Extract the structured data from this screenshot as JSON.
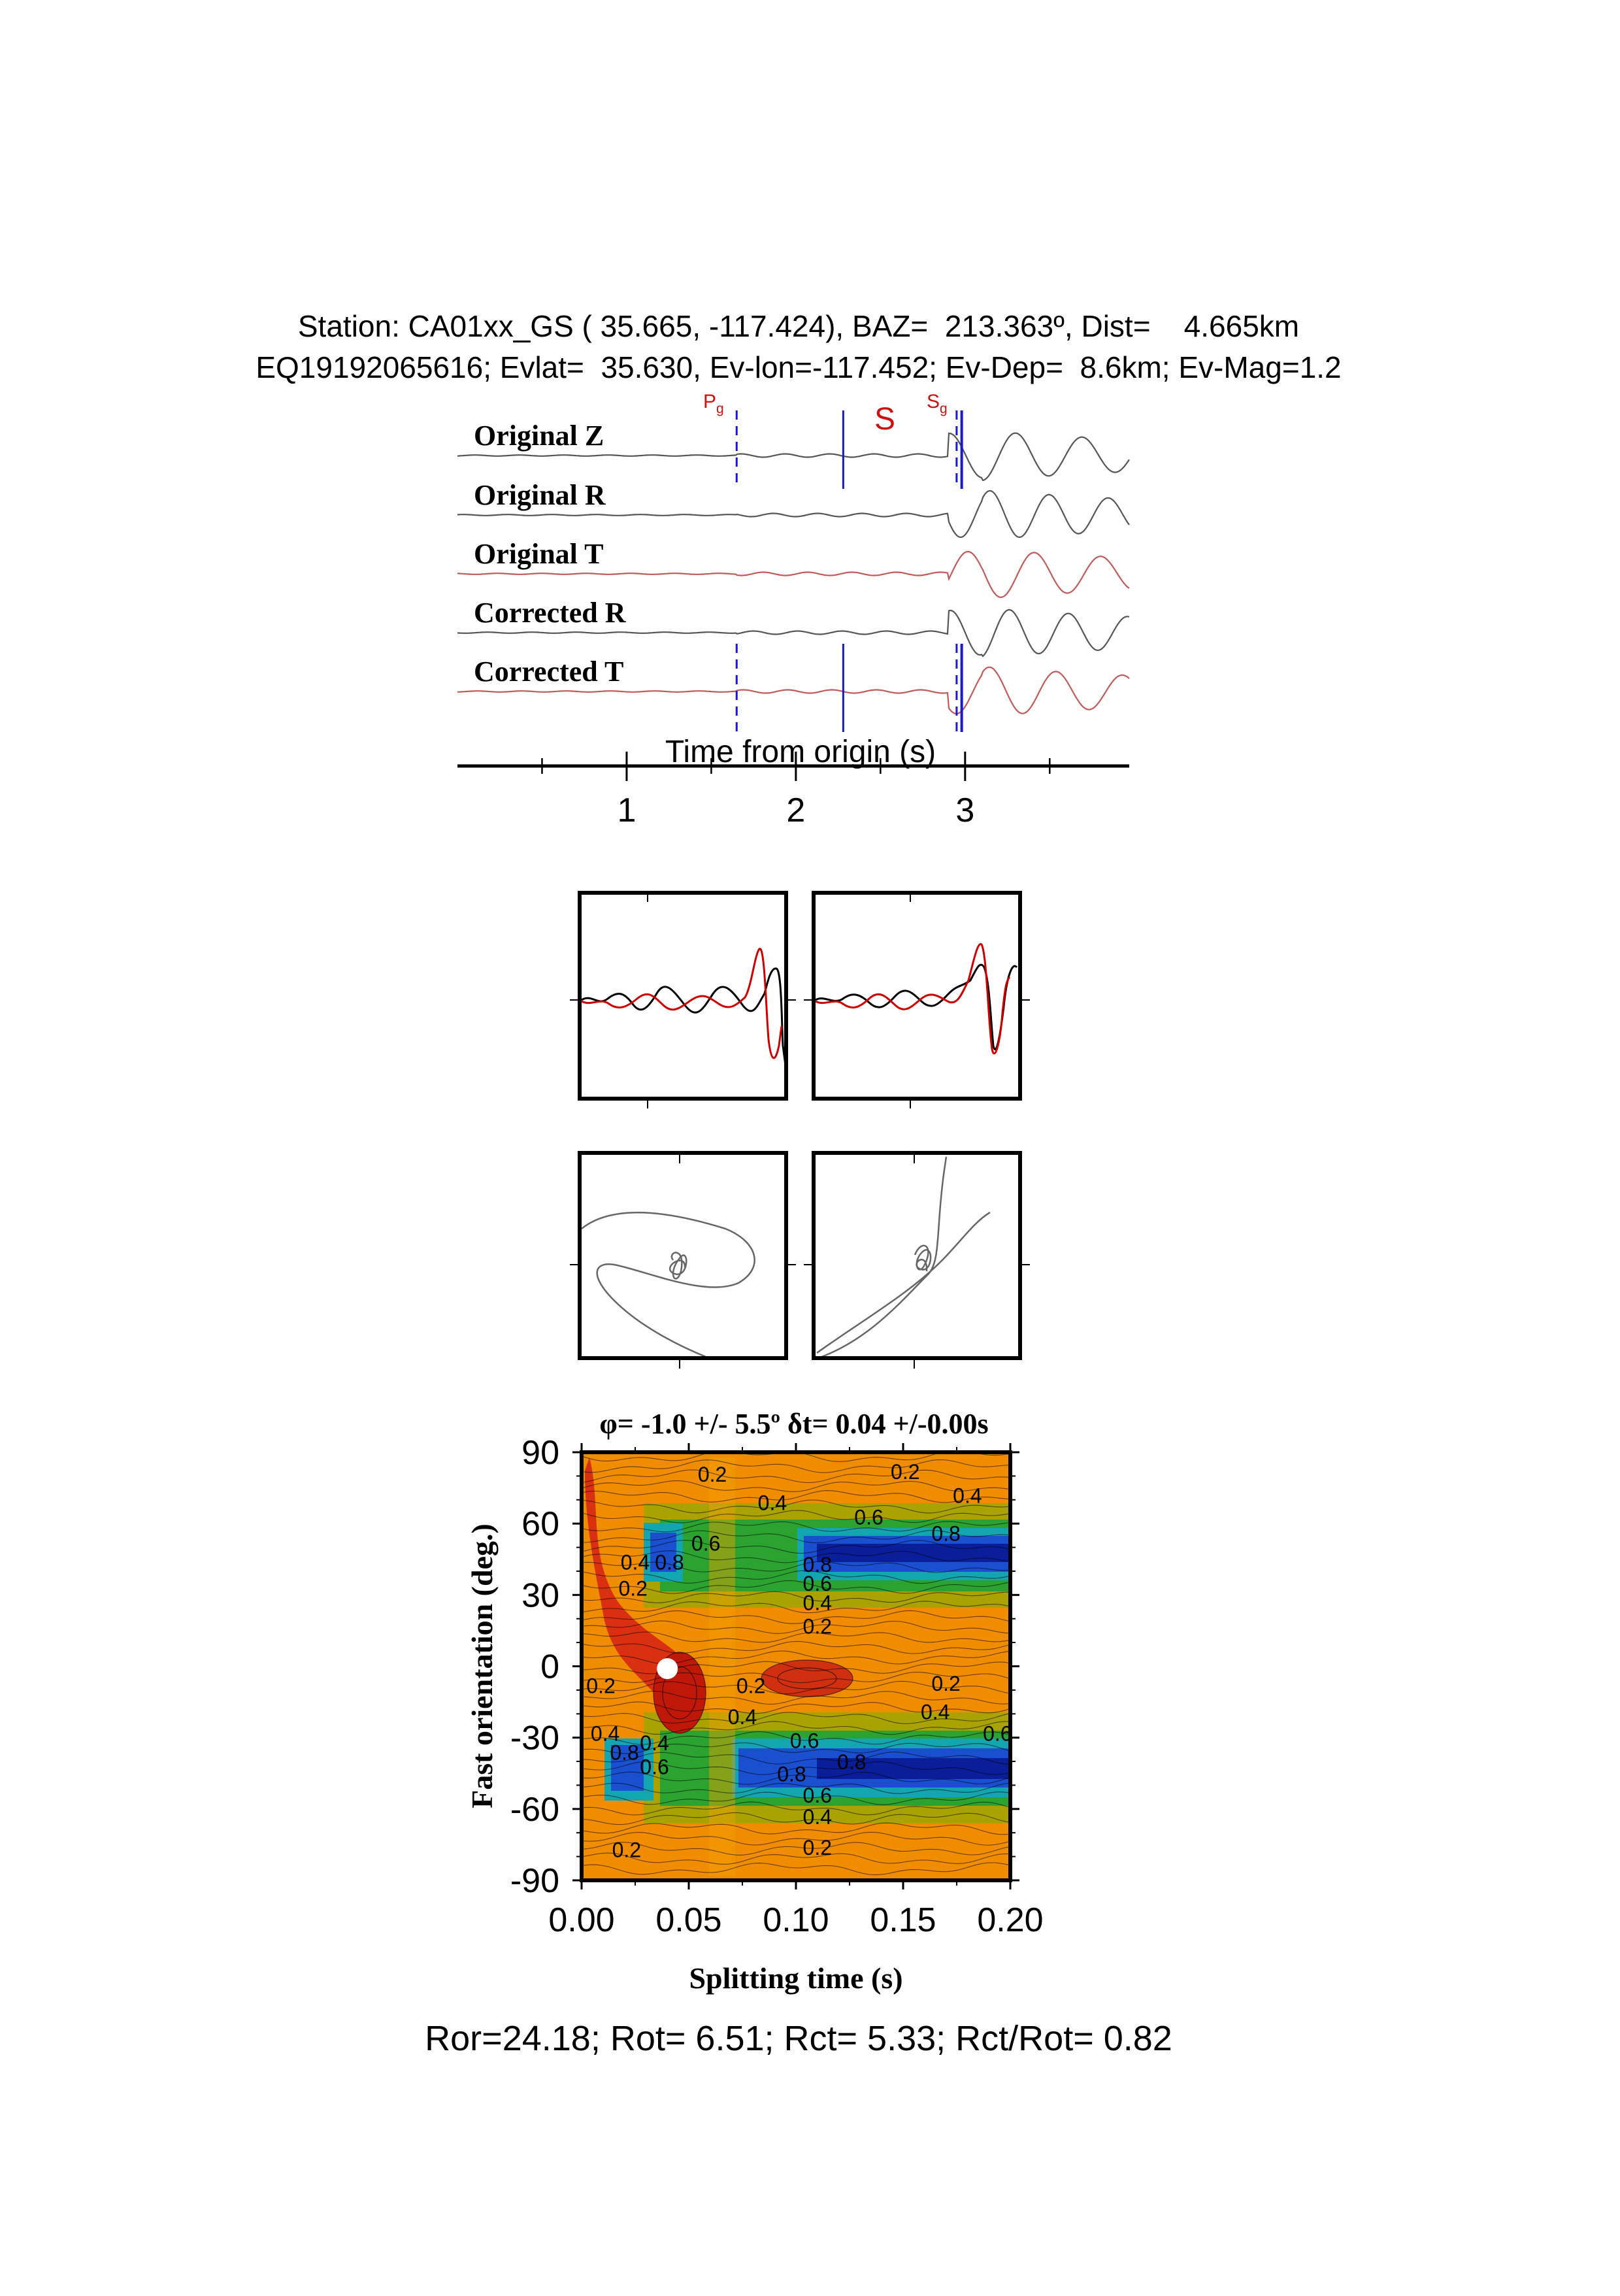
{
  "header": {
    "line1": "Station: CA01xx_GS ( 35.665, -117.424), BAZ=  213.363º, Dist=    4.665km",
    "line2": "EQ19192065616; Evlat=  35.630, Ev-lon=-117.452; Ev-Dep=  8.6km; Ev-Mag=1.2"
  },
  "colors": {
    "trace_black": "#555555",
    "trace_red": "#c05a5a",
    "pick_blue": "#1a1acc",
    "phase_red": "#cc1111"
  },
  "seismogram": {
    "traces": [
      {
        "label": "Original Z",
        "color": "black"
      },
      {
        "label": "Original R",
        "color": "black"
      },
      {
        "label": "Original T",
        "color": "red"
      },
      {
        "label": "Corrected R",
        "color": "black"
      },
      {
        "label": "Corrected T",
        "color": "red"
      }
    ],
    "phases": {
      "pg": "P",
      "pg_sub": "g",
      "s": "S",
      "sg": "S",
      "sg_sub": "g"
    },
    "picks": {
      "pg": 1.65,
      "s": 2.28,
      "sg1": 2.95,
      "sg2": 2.98
    },
    "time_range": [
      0.0,
      3.97
    ],
    "xlabel": "Time from origin (s)",
    "ticks": [
      {
        "value": 1,
        "label": "1"
      },
      {
        "value": 2,
        "label": "2"
      },
      {
        "value": 3,
        "label": "3"
      }
    ]
  },
  "contour": {
    "title": "φ= -1.0 +/- 5.5º δt= 0.04 +/-0.00s",
    "xlabel": "Splitting time (s)",
    "ylabel": "Fast orientation (deg.)",
    "xlim": [
      0.0,
      0.2
    ],
    "ylim": [
      -90,
      90
    ],
    "xticks": [
      "0.00",
      "0.05",
      "0.10",
      "0.15",
      "0.20"
    ],
    "yticks": [
      "90",
      "60",
      "30",
      "0",
      "-30",
      "-60",
      "-90"
    ],
    "best": {
      "dt": 0.04,
      "phi": -1.0
    },
    "labels": [
      {
        "text": "0.2",
        "dt": 0.061,
        "phi": 81
      },
      {
        "text": "0.2",
        "dt": 0.151,
        "phi": 82
      },
      {
        "text": "0.4",
        "dt": 0.089,
        "phi": 69
      },
      {
        "text": "0.4",
        "dt": 0.18,
        "phi": 72
      },
      {
        "text": "0.6",
        "dt": 0.134,
        "phi": 63
      },
      {
        "text": "0.8",
        "dt": 0.17,
        "phi": 56
      },
      {
        "text": "0.6",
        "dt": 0.058,
        "phi": 52
      },
      {
        "text": "0.8",
        "dt": 0.041,
        "phi": 44
      },
      {
        "text": "0.4",
        "dt": 0.025,
        "phi": 44
      },
      {
        "text": "0.2",
        "dt": 0.024,
        "phi": 33
      },
      {
        "text": "0.8",
        "dt": 0.11,
        "phi": 43
      },
      {
        "text": "0.6",
        "dt": 0.11,
        "phi": 35
      },
      {
        "text": "0.4",
        "dt": 0.11,
        "phi": 27
      },
      {
        "text": "0.2",
        "dt": 0.11,
        "phi": 17
      },
      {
        "text": "0.2",
        "dt": 0.009,
        "phi": -8
      },
      {
        "text": "0.2",
        "dt": 0.079,
        "phi": -8
      },
      {
        "text": "0.2",
        "dt": 0.17,
        "phi": -7
      },
      {
        "text": "0.4",
        "dt": 0.075,
        "phi": -21
      },
      {
        "text": "0.4",
        "dt": 0.165,
        "phi": -19
      },
      {
        "text": "0.6",
        "dt": 0.194,
        "phi": -28
      },
      {
        "text": "0.4",
        "dt": 0.011,
        "phi": -28
      },
      {
        "text": "0.8",
        "dt": 0.02,
        "phi": -36
      },
      {
        "text": "0.4",
        "dt": 0.034,
        "phi": -32
      },
      {
        "text": "0.6",
        "dt": 0.034,
        "phi": -42
      },
      {
        "text": "0.6",
        "dt": 0.104,
        "phi": -31
      },
      {
        "text": "0.8",
        "dt": 0.098,
        "phi": -45
      },
      {
        "text": "0.8",
        "dt": 0.126,
        "phi": -40
      },
      {
        "text": "0.6",
        "dt": 0.11,
        "phi": -54
      },
      {
        "text": "0.4",
        "dt": 0.11,
        "phi": -63
      },
      {
        "text": "0.2",
        "dt": 0.11,
        "phi": -76
      },
      {
        "text": "0.2",
        "dt": 0.021,
        "phi": -77
      }
    ]
  },
  "footer": "Ror=24.18; Rot= 6.51; Rct= 5.33; Rct/Rot= 0.82"
}
